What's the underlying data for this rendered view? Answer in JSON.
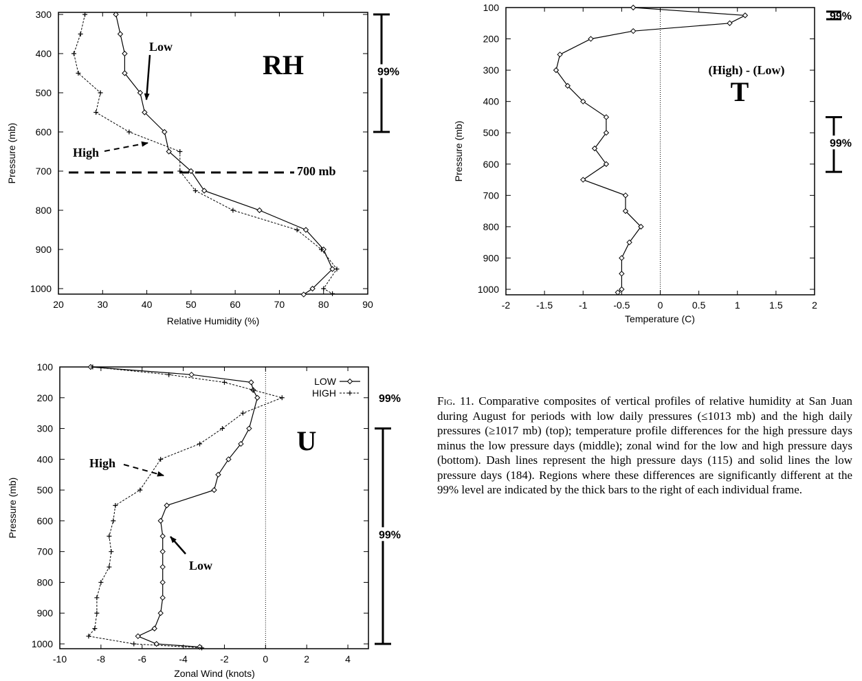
{
  "chart_data": [
    {
      "type": "line",
      "title": "RH",
      "xlabel": "Relative Humidity (%)",
      "ylabel": "Pressure (mb)",
      "xlim": [
        20,
        90
      ],
      "ylim": [
        1020,
        300
      ],
      "xticks": [
        "20",
        "30",
        "40",
        "50",
        "60",
        "70",
        "80",
        "90"
      ],
      "yticks": [
        "300",
        "400",
        "500",
        "600",
        "700",
        "800",
        "900",
        "1000"
      ],
      "series": [
        {
          "name": "Low",
          "style": "solid",
          "marker": "diamond",
          "points": [
            [
              33,
              300
            ],
            [
              34,
              350
            ],
            [
              35,
              400
            ],
            [
              35,
              450
            ],
            [
              38.5,
              500
            ],
            [
              39.5,
              550
            ],
            [
              44,
              600
            ],
            [
              45,
              650
            ],
            [
              50,
              700
            ],
            [
              53,
              750
            ],
            [
              65.5,
              800
            ],
            [
              76,
              850
            ],
            [
              80,
              900
            ],
            [
              82,
              950
            ],
            [
              77.5,
              1000
            ],
            [
              75.5,
              1015
            ]
          ]
        },
        {
          "name": "High",
          "style": "dashed",
          "marker": "plus",
          "points": [
            [
              26,
              300
            ],
            [
              25,
              350
            ],
            [
              23.5,
              400
            ],
            [
              24.5,
              450
            ],
            [
              29.5,
              500
            ],
            [
              28.5,
              550
            ],
            [
              36,
              600
            ],
            [
              47.5,
              650
            ],
            [
              47.5,
              700
            ],
            [
              51,
              750
            ],
            [
              59.5,
              800
            ],
            [
              74,
              850
            ],
            [
              79.5,
              900
            ],
            [
              83,
              950
            ],
            [
              80,
              1000
            ],
            [
              82,
              1013
            ]
          ]
        }
      ],
      "annotations": [
        "Low",
        "High",
        "700 mb"
      ],
      "reference_line_mb": 700,
      "significance": {
        "label": "99%",
        "range_mb": [
          300,
          600
        ]
      }
    },
    {
      "type": "line",
      "title": "(High) - (Low)",
      "panel_label": "T",
      "xlabel": "Temperature (C)",
      "ylabel": "Pressure (mb)",
      "xlim": [
        -2,
        2
      ],
      "ylim": [
        1020,
        100
      ],
      "xticks": [
        "-2",
        "-1.5",
        "-1",
        "-0.5",
        "0",
        "0.5",
        "1",
        "1.5",
        "2"
      ],
      "yticks": [
        "100",
        "200",
        "300",
        "400",
        "500",
        "600",
        "700",
        "800",
        "900",
        "1000"
      ],
      "zero_line": true,
      "series": [
        {
          "style": "solid",
          "marker": "diamond",
          "points": [
            [
              -0.35,
              100
            ],
            [
              1.1,
              125
            ],
            [
              0.9,
              150
            ],
            [
              -0.35,
              175
            ],
            [
              -0.9,
              200
            ],
            [
              -1.3,
              250
            ],
            [
              -1.35,
              300
            ],
            [
              -1.2,
              350
            ],
            [
              -1.0,
              400
            ],
            [
              -0.7,
              450
            ],
            [
              -0.7,
              500
            ],
            [
              -0.85,
              550
            ],
            [
              -0.7,
              600
            ],
            [
              -1.0,
              650
            ],
            [
              -0.45,
              700
            ],
            [
              -0.45,
              750
            ],
            [
              -0.25,
              800
            ],
            [
              -0.4,
              850
            ],
            [
              -0.5,
              900
            ],
            [
              -0.5,
              950
            ],
            [
              -0.5,
              1000
            ],
            [
              -0.55,
              1010
            ]
          ]
        }
      ],
      "significance": [
        {
          "label": "99%",
          "range_mb": [
            115,
            135
          ]
        },
        {
          "label": "99%",
          "range_mb": [
            450,
            625
          ]
        }
      ]
    },
    {
      "type": "line",
      "title": "U",
      "xlabel": "Zonal Wind (knots)",
      "ylabel": "Pressure (mb)",
      "xlim": [
        -10,
        5
      ],
      "ylim": [
        1020,
        100
      ],
      "xticks": [
        "-10",
        "-8",
        "-6",
        "-4",
        "-2",
        "0",
        "2",
        "4"
      ],
      "yticks": [
        "100",
        "200",
        "300",
        "400",
        "500",
        "600",
        "700",
        "800",
        "900",
        "1000"
      ],
      "zero_line": true,
      "legend": {
        "position": "top-right",
        "entries": [
          "LOW",
          "HIGH"
        ]
      },
      "series": [
        {
          "name": "LOW",
          "style": "solid",
          "marker": "diamond",
          "points": [
            [
              -8.5,
              100
            ],
            [
              -3.6,
              125
            ],
            [
              -0.7,
              150
            ],
            [
              -0.6,
              175
            ],
            [
              -0.4,
              200
            ],
            [
              -0.8,
              300
            ],
            [
              -1.2,
              350
            ],
            [
              -1.8,
              400
            ],
            [
              -2.3,
              450
            ],
            [
              -2.5,
              500
            ],
            [
              -4.8,
              550
            ],
            [
              -5.1,
              600
            ],
            [
              -5.0,
              650
            ],
            [
              -5.0,
              700
            ],
            [
              -5.0,
              750
            ],
            [
              -5.0,
              800
            ],
            [
              -5.0,
              850
            ],
            [
              -5.1,
              900
            ],
            [
              -5.4,
              950
            ],
            [
              -6.2,
              975
            ],
            [
              -5.3,
              1000
            ],
            [
              -3.2,
              1010
            ]
          ]
        },
        {
          "name": "HIGH",
          "style": "dashed",
          "marker": "plus",
          "points": [
            [
              -8.4,
              100
            ],
            [
              -4.7,
              125
            ],
            [
              -2.0,
              150
            ],
            [
              -0.6,
              175
            ],
            [
              0.8,
              200
            ],
            [
              -1.1,
              250
            ],
            [
              -2.1,
              300
            ],
            [
              -3.2,
              350
            ],
            [
              -5.1,
              400
            ],
            [
              -6.1,
              500
            ],
            [
              -7.3,
              550
            ],
            [
              -7.4,
              600
            ],
            [
              -7.6,
              650
            ],
            [
              -7.5,
              700
            ],
            [
              -7.6,
              750
            ],
            [
              -8.0,
              800
            ],
            [
              -8.2,
              850
            ],
            [
              -8.2,
              900
            ],
            [
              -8.3,
              950
            ],
            [
              -8.6,
              975
            ],
            [
              -6.4,
              1000
            ],
            [
              -3.1,
              1013
            ]
          ]
        }
      ],
      "annotations": [
        "High",
        "Low"
      ],
      "significance": [
        {
          "label": "99%",
          "range_mb": [
            200,
            200
          ]
        },
        {
          "label": "99%",
          "range_mb": [
            300,
            1000
          ]
        }
      ]
    }
  ],
  "caption": {
    "label": "Fig. 11.",
    "text": "Comparative composites of vertical profiles of relative humidity at San Juan during August for periods with low daily pressures (≤1013 mb) and the high daily pressures (≥1017 mb) (top); temperature profile differences for the high pressure days minus the low pressure days (middle); zonal wind for the low and high pressure days (bottom). Dash lines represent the high pressure days (115) and solid lines the low pressure days (184). Regions where these differences are significantly different at the 99% level are indicated by the thick bars to the right of each individual frame."
  }
}
